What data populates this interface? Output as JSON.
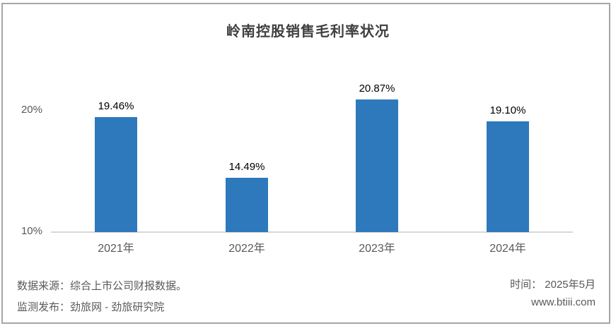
{
  "chart_data": {
    "type": "bar",
    "title": "岭南控股销售毛利率状况",
    "categories": [
      "2021年",
      "2022年",
      "2023年",
      "2024年"
    ],
    "values": [
      19.46,
      14.49,
      20.87,
      19.1
    ],
    "value_labels": [
      "19.46%",
      "14.49%",
      "20.87%",
      "19.10%"
    ],
    "xlabel": "",
    "ylabel": "",
    "ylim": [
      10,
      20
    ],
    "yticks": [
      {
        "label": "20%",
        "value": 20
      },
      {
        "label": "10%",
        "value": 10
      }
    ],
    "grid": "off",
    "legend": "none",
    "bar_color": "#2D79BC",
    "axis_color": "#D9D9D9"
  },
  "footer": {
    "source_line": "数据来源：综合上市公司财报数据。",
    "publisher_line": "监测发布：劲旅网 - 劲旅研究院",
    "time_line": "时间： 2025年5月",
    "website": "www.btiii.com"
  }
}
